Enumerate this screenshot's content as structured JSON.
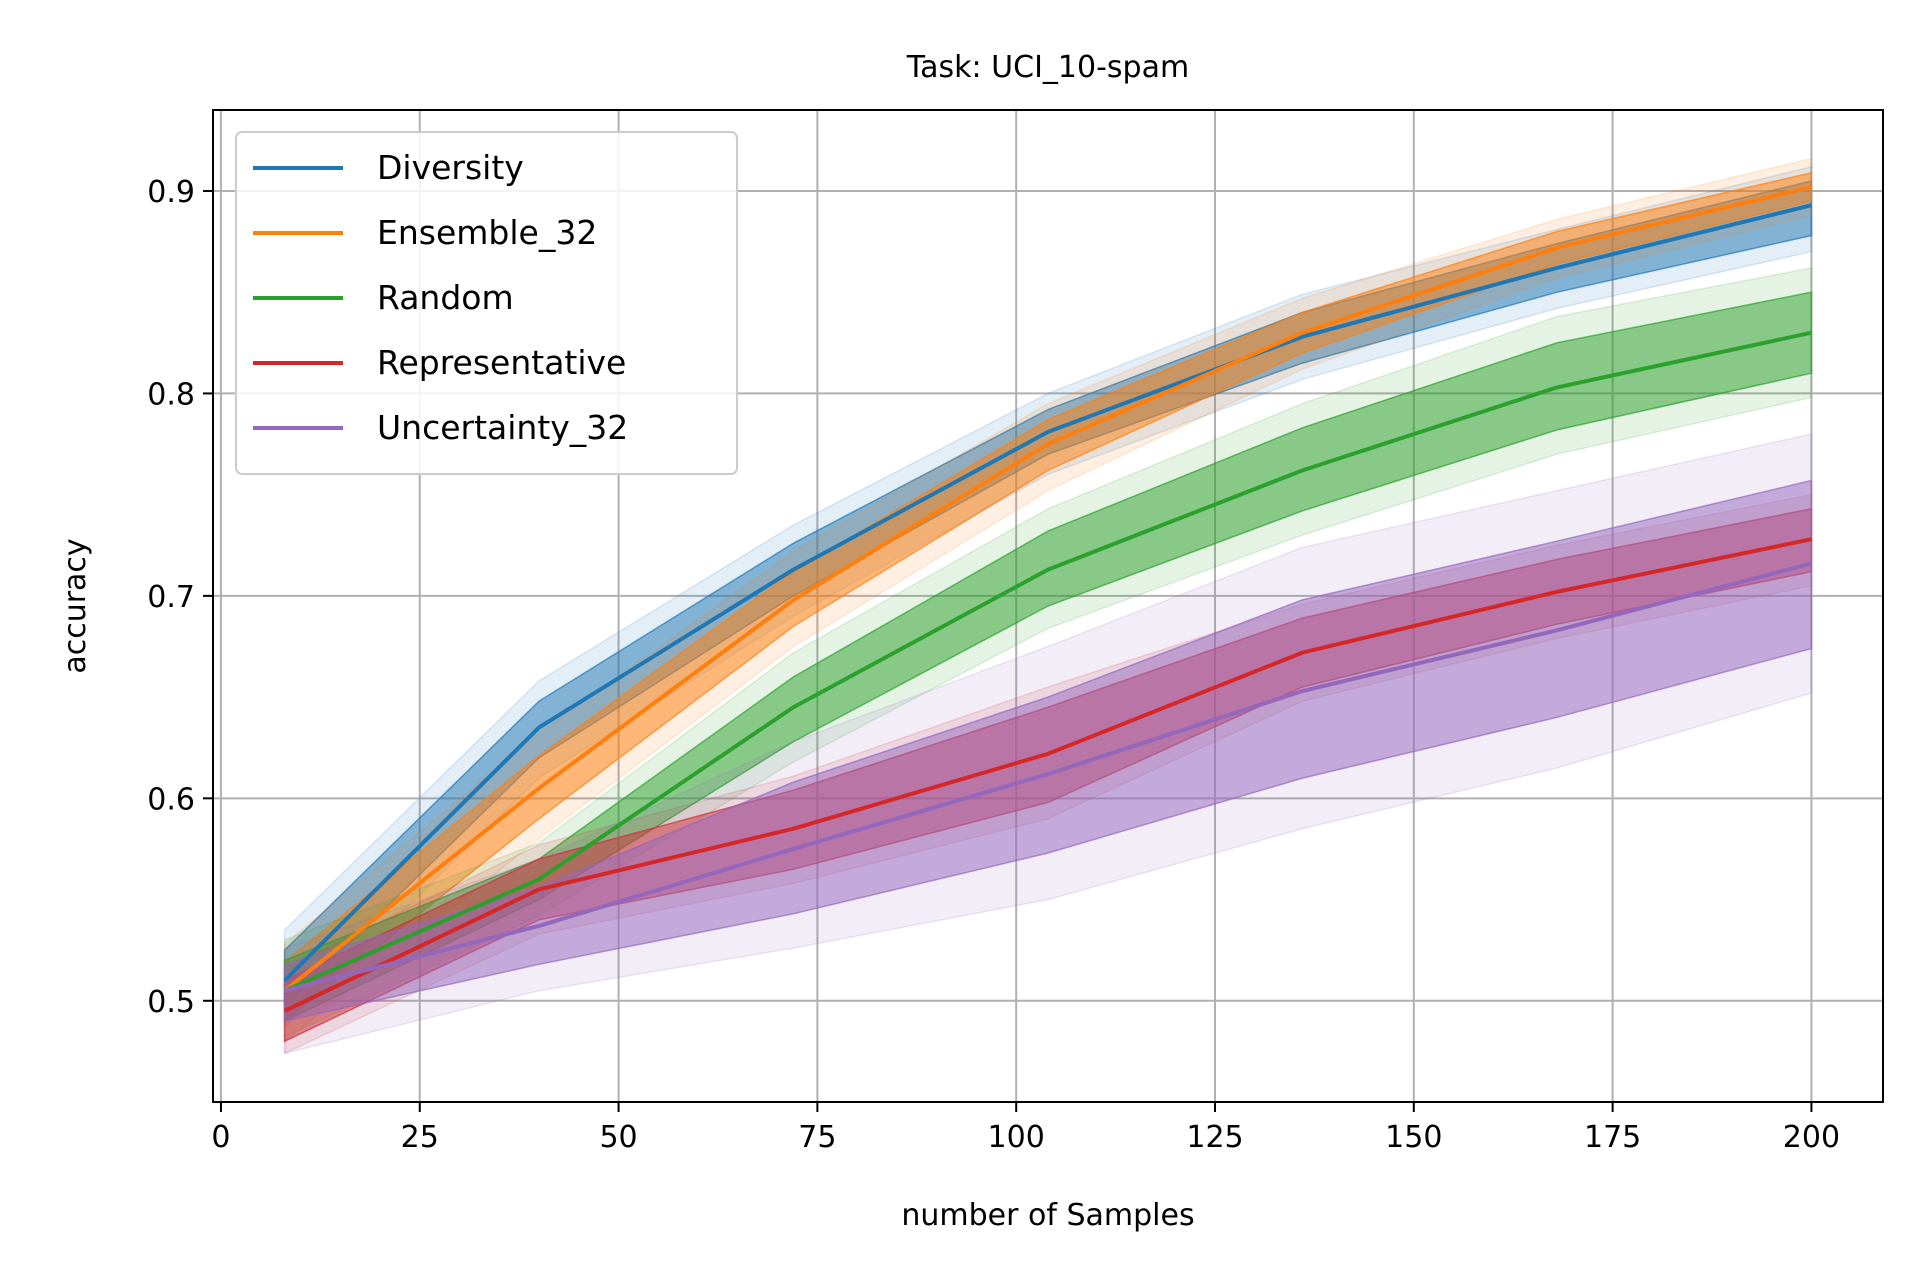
{
  "chart_data": {
    "type": "line",
    "title": "Task: UCI_10-spam",
    "xlabel": "number of Samples",
    "ylabel": "accuracy",
    "xlim": [
      -1,
      209
    ],
    "ylim": [
      0.45,
      0.94
    ],
    "x_ticks": [
      0,
      25,
      50,
      75,
      100,
      125,
      150,
      175,
      200
    ],
    "x_tick_labels": [
      "0",
      "25",
      "50",
      "75",
      "100",
      "125",
      "150",
      "175",
      "200"
    ],
    "y_ticks": [
      0.5,
      0.6,
      0.7,
      0.8,
      0.9
    ],
    "y_tick_labels": [
      "0.5",
      "0.6",
      "0.7",
      "0.8",
      "0.9"
    ],
    "grid": true,
    "legend_position": "top-left",
    "x": [
      8,
      40,
      72,
      104,
      136,
      168,
      200
    ],
    "series": [
      {
        "name": "Diversity",
        "color": "#1f77b4",
        "values": [
          0.51,
          0.635,
          0.713,
          0.781,
          0.828,
          0.862,
          0.893
        ],
        "inner_lower": [
          0.497,
          0.62,
          0.7,
          0.77,
          0.815,
          0.85,
          0.878
        ],
        "inner_upper": [
          0.525,
          0.648,
          0.726,
          0.792,
          0.84,
          0.874,
          0.905
        ],
        "outer_lower": [
          0.487,
          0.61,
          0.69,
          0.76,
          0.807,
          0.842,
          0.87
        ],
        "outer_upper": [
          0.535,
          0.658,
          0.735,
          0.8,
          0.849,
          0.881,
          0.912
        ]
      },
      {
        "name": "Ensemble_32",
        "color": "#ff7f0e",
        "values": [
          0.505,
          0.605,
          0.698,
          0.775,
          0.83,
          0.872,
          0.902
        ],
        "inner_lower": [
          0.49,
          0.59,
          0.685,
          0.762,
          0.82,
          0.864,
          0.895
        ],
        "inner_upper": [
          0.519,
          0.621,
          0.712,
          0.787,
          0.84,
          0.88,
          0.909
        ],
        "outer_lower": [
          0.48,
          0.58,
          0.675,
          0.752,
          0.812,
          0.857,
          0.888
        ],
        "outer_upper": [
          0.528,
          0.632,
          0.722,
          0.795,
          0.847,
          0.886,
          0.916
        ]
      },
      {
        "name": "Random",
        "color": "#2ca02c",
        "values": [
          0.505,
          0.56,
          0.645,
          0.713,
          0.762,
          0.803,
          0.83
        ],
        "inner_lower": [
          0.49,
          0.55,
          0.628,
          0.695,
          0.742,
          0.782,
          0.81
        ],
        "inner_upper": [
          0.52,
          0.57,
          0.66,
          0.732,
          0.783,
          0.825,
          0.85
        ],
        "outer_lower": [
          0.482,
          0.542,
          0.618,
          0.684,
          0.73,
          0.77,
          0.798
        ],
        "outer_upper": [
          0.53,
          0.578,
          0.672,
          0.743,
          0.795,
          0.838,
          0.862
        ]
      },
      {
        "name": "Representative",
        "color": "#d62728",
        "values": [
          0.495,
          0.555,
          0.585,
          0.622,
          0.672,
          0.702,
          0.728
        ],
        "inner_lower": [
          0.48,
          0.54,
          0.565,
          0.598,
          0.655,
          0.686,
          0.712
        ],
        "inner_upper": [
          0.51,
          0.57,
          0.604,
          0.645,
          0.689,
          0.718,
          0.743
        ],
        "outer_lower": [
          0.474,
          0.533,
          0.558,
          0.59,
          0.648,
          0.679,
          0.705
        ],
        "outer_upper": [
          0.516,
          0.577,
          0.611,
          0.655,
          0.696,
          0.725,
          0.75
        ]
      },
      {
        "name": "Uncertainty_32",
        "color": "#9467bd",
        "values": [
          0.505,
          0.537,
          0.575,
          0.612,
          0.653,
          0.683,
          0.716
        ],
        "inner_lower": [
          0.49,
          0.518,
          0.543,
          0.573,
          0.61,
          0.64,
          0.674
        ],
        "inner_upper": [
          0.518,
          0.556,
          0.608,
          0.65,
          0.698,
          0.727,
          0.757
        ],
        "outer_lower": [
          0.474,
          0.505,
          0.526,
          0.55,
          0.585,
          0.615,
          0.652
        ],
        "outer_upper": [
          0.526,
          0.57,
          0.628,
          0.675,
          0.724,
          0.752,
          0.78
        ]
      }
    ]
  }
}
